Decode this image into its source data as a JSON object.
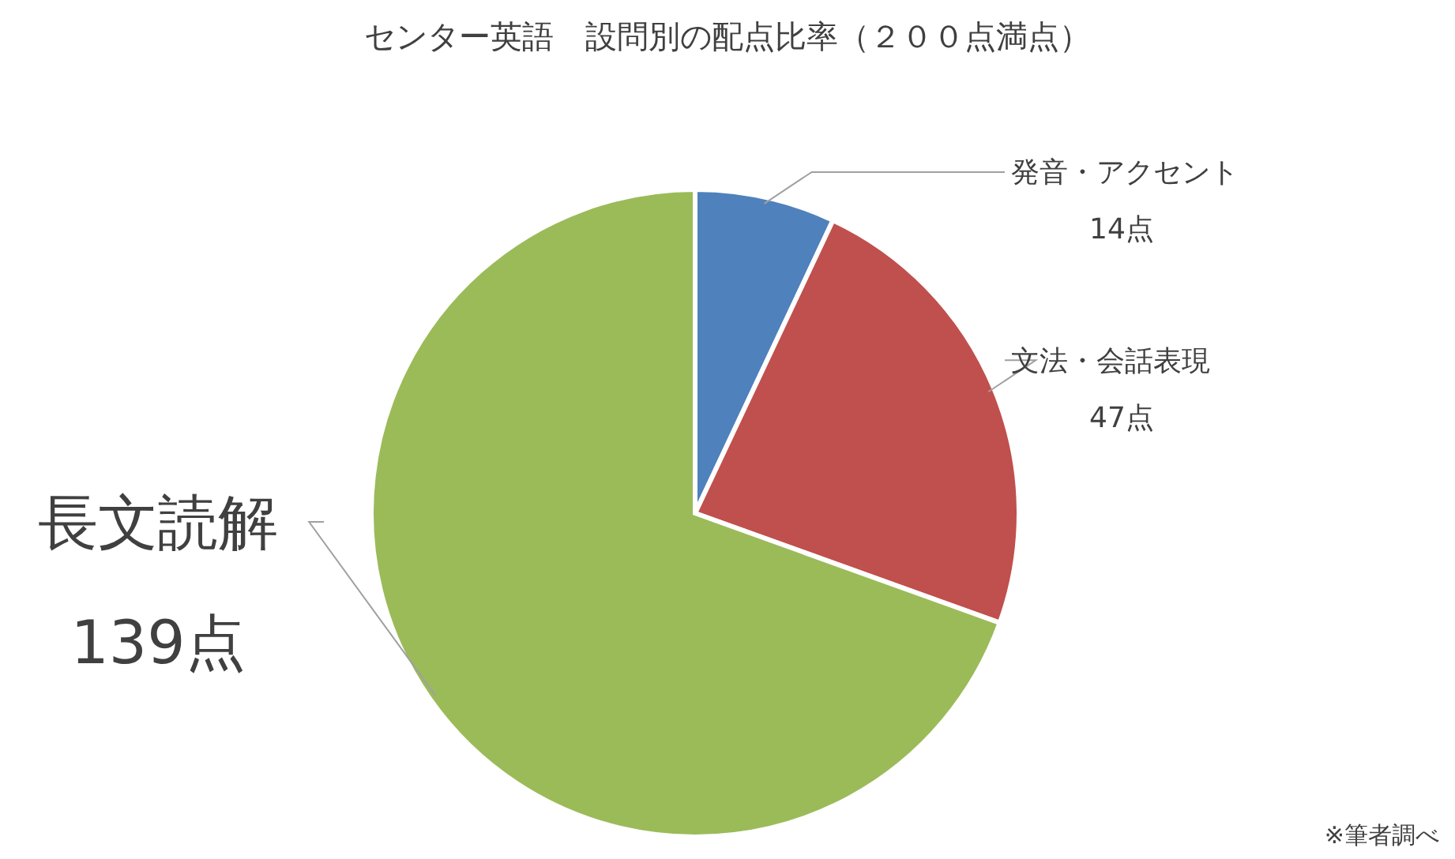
{
  "chart_data": {
    "type": "pie",
    "title": "センター英語　設問別の配点比率（２００点満点）",
    "categories": [
      "発音・アクセント",
      "文法・会話表現",
      "長文読解"
    ],
    "values": [
      14,
      47,
      139
    ],
    "value_labels": [
      "14点",
      "47点",
      "139点"
    ],
    "colors": [
      "#4f81bd",
      "#c0504d",
      "#9bbb59"
    ],
    "annotations": [
      "※筆者調べ"
    ]
  }
}
